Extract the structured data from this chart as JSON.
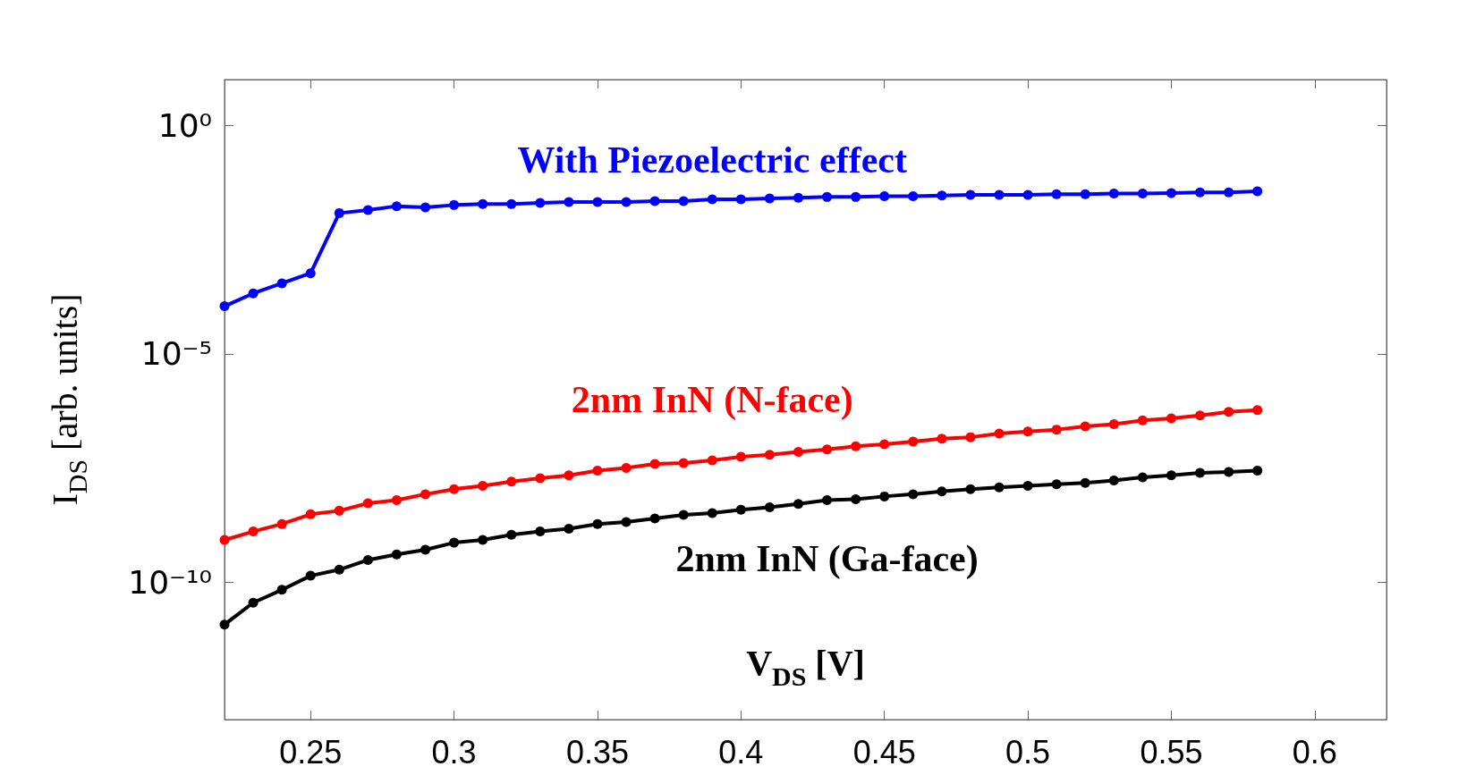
{
  "chart_data": {
    "type": "line",
    "xlabel": "V$_{DS}$ [V]",
    "ylabel": "I$_{DS}$ [arb. units]",
    "log": "y",
    "marker": "circle",
    "line_style": "solid",
    "grid": false,
    "legend": false,
    "x": [
      0.22,
      0.23,
      0.24,
      0.25,
      0.26,
      0.27,
      0.28,
      0.29,
      0.3,
      0.31,
      0.32,
      0.33,
      0.34,
      0.35,
      0.36,
      0.37,
      0.38,
      0.39,
      0.4,
      0.41,
      0.42,
      0.43,
      0.44,
      0.45,
      0.46,
      0.47,
      0.48,
      0.49,
      0.5,
      0.51,
      0.52,
      0.53,
      0.54,
      0.55,
      0.56,
      0.57,
      0.58
    ],
    "xlim": [
      0.22,
      0.625
    ],
    "xticks": [
      0.25,
      0.3,
      0.35,
      0.4,
      0.45,
      0.5,
      0.55,
      0.6
    ],
    "ylim": [
      1e-13,
      10
    ],
    "yticks": [
      {
        "value": 1e-10,
        "label": "10⁻¹⁰"
      },
      {
        "value": 1e-05,
        "label": "10⁻⁵"
      },
      {
        "value": 1,
        "label": "10⁰"
      }
    ],
    "series": [
      {
        "name": "With Piezoelectric effect",
        "color": "#0000ff",
        "values": [
          0.00011,
          0.00021,
          0.00035,
          0.00058,
          0.012,
          0.014,
          0.017,
          0.016,
          0.018,
          0.019,
          0.019,
          0.02,
          0.021,
          0.021,
          0.021,
          0.022,
          0.022,
          0.024,
          0.024,
          0.025,
          0.026,
          0.027,
          0.027,
          0.028,
          0.028,
          0.029,
          0.03,
          0.03,
          0.03,
          0.031,
          0.031,
          0.032,
          0.032,
          0.033,
          0.034,
          0.034,
          0.036
        ]
      },
      {
        "name": "2nm InN (N-face)",
        "color": "#ff0000",
        "values": [
          8.5e-10,
          1.3e-09,
          1.9e-09,
          3.1e-09,
          3.7e-09,
          5.4e-09,
          6.3e-09,
          8.5e-09,
          1.1e-08,
          1.3e-08,
          1.6e-08,
          1.9e-08,
          2.2e-08,
          2.8e-08,
          3.2e-08,
          3.9e-08,
          4.1e-08,
          4.7e-08,
          5.6e-08,
          6.2e-08,
          7.2e-08,
          8.1e-08,
          9.5e-08,
          1.05e-07,
          1.2e-07,
          1.4e-07,
          1.5e-07,
          1.8e-07,
          2e-07,
          2.2e-07,
          2.6e-07,
          2.9e-07,
          3.5e-07,
          3.9e-07,
          4.5e-07,
          5.4e-07,
          5.9e-07
        ]
      },
      {
        "name": "2nm InN (Ga-face)",
        "color": "#000000",
        "values": [
          1.2e-11,
          3.6e-11,
          6.9e-11,
          1.4e-10,
          1.9e-10,
          3.1e-10,
          4.1e-10,
          5.2e-10,
          7.4e-10,
          8.5e-10,
          1.1e-09,
          1.3e-09,
          1.5e-09,
          1.9e-09,
          2.1e-09,
          2.5e-09,
          3e-09,
          3.3e-09,
          3.9e-09,
          4.4e-09,
          5.2e-09,
          6.3e-09,
          6.6e-09,
          7.6e-09,
          8.5e-09,
          9.8e-09,
          1.1e-08,
          1.2e-08,
          1.3e-08,
          1.4e-08,
          1.5e-08,
          1.7e-08,
          2e-08,
          2.2e-08,
          2.5e-08,
          2.6e-08,
          2.8e-08
        ]
      }
    ]
  }
}
